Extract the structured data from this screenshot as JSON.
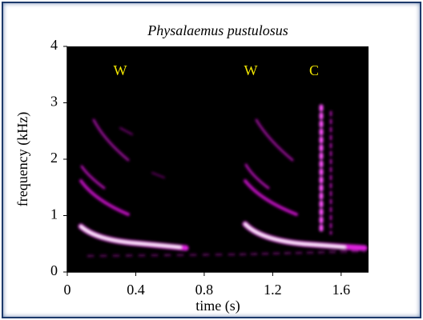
{
  "chart_data": {
    "type": "spectrogram",
    "title": "Physalaemus pustulosus",
    "x_label": "time (s)",
    "y_label": "frequency (kHz)",
    "xlim": [
      0,
      1.76
    ],
    "xticks": [
      0,
      0.4,
      0.8,
      1.2,
      1.6
    ],
    "ylim": [
      0,
      4
    ],
    "yticks": [
      0,
      1,
      2,
      3,
      4
    ],
    "annotations": [
      "W",
      "W",
      "C"
    ],
    "annotation_color": "#f2e600",
    "background": "#000000"
  }
}
